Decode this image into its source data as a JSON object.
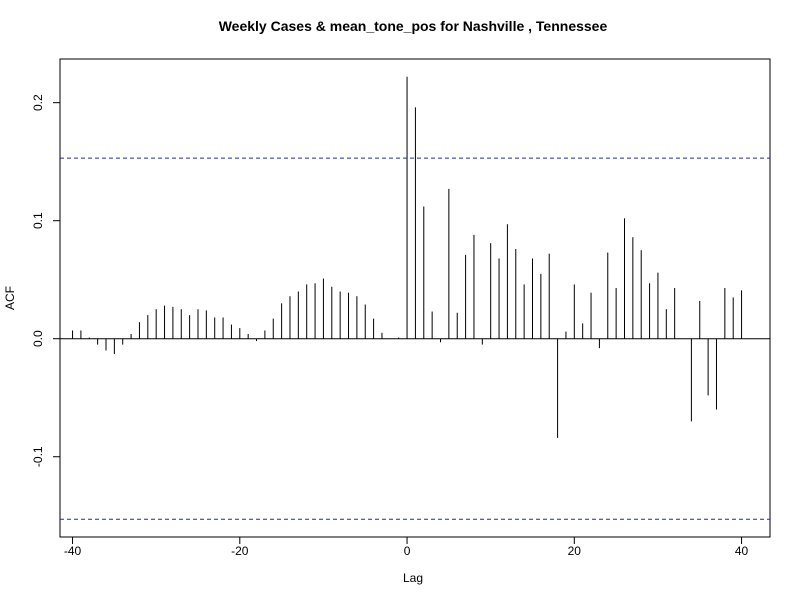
{
  "chart_data": {
    "type": "bar",
    "title": "Weekly Cases & mean_tone_pos for Nashville , Tennessee",
    "xlabel": "Lag",
    "ylabel": "ACF",
    "xlim": [
      -41.5,
      43.4
    ],
    "ylim": [
      -0.168,
      0.237
    ],
    "x_ticks": [
      -40,
      -20,
      0,
      20,
      40
    ],
    "x_tick_labels": [
      "-40",
      "-20",
      "0",
      "20",
      "40"
    ],
    "y_ticks": [
      -0.1,
      0,
      0.1,
      0.2
    ],
    "y_tick_labels": [
      "-0.1",
      "0.0",
      "0.1",
      "0.2"
    ],
    "confidence_band": [
      0.153,
      -0.153
    ],
    "grid": false,
    "legend": "none",
    "colors": {
      "bars": "#000000",
      "band": "#1f2fa0",
      "zero_line": "#000000"
    },
    "x": [
      -40,
      -39,
      -38,
      -37,
      -36,
      -35,
      -34,
      -33,
      -32,
      -31,
      -30,
      -29,
      -28,
      -27,
      -26,
      -25,
      -24,
      -23,
      -22,
      -21,
      -20,
      -19,
      -18,
      -17,
      -16,
      -15,
      -14,
      -13,
      -12,
      -11,
      -10,
      -9,
      -8,
      -7,
      -6,
      -5,
      -4,
      -3,
      -2,
      -1,
      0,
      1,
      2,
      3,
      4,
      5,
      6,
      7,
      8,
      9,
      10,
      11,
      12,
      13,
      14,
      15,
      16,
      17,
      18,
      19,
      20,
      21,
      22,
      23,
      24,
      25,
      26,
      27,
      28,
      29,
      30,
      31,
      32,
      33,
      34,
      35,
      36,
      37,
      38,
      39,
      40
    ],
    "values": [
      0.007,
      0.007,
      0.001,
      -0.005,
      -0.01,
      -0.013,
      -0.005,
      0.004,
      0.014,
      0.02,
      0.025,
      0.028,
      0.027,
      0.025,
      0.02,
      0.025,
      0.024,
      0.018,
      0.018,
      0.012,
      0.009,
      0.004,
      -0.002,
      0.007,
      0.017,
      0.03,
      0.036,
      0.04,
      0.046,
      0.047,
      0.051,
      0.044,
      0.04,
      0.039,
      0.036,
      0.029,
      0.017,
      0.005,
      0.0,
      0.001,
      0.222,
      0.196,
      0.112,
      0.023,
      -0.003,
      0.127,
      0.022,
      0.071,
      0.088,
      -0.005,
      0.081,
      0.068,
      0.097,
      0.076,
      0.046,
      0.068,
      0.055,
      0.072,
      -0.084,
      0.006,
      0.046,
      0.013,
      0.039,
      -0.008,
      0.073,
      0.043,
      0.102,
      0.086,
      0.075,
      0.047,
      0.056,
      0.025,
      0.043,
      0.0,
      -0.07,
      0.032,
      -0.048,
      -0.06,
      0.043,
      0.035,
      0.041
    ]
  }
}
